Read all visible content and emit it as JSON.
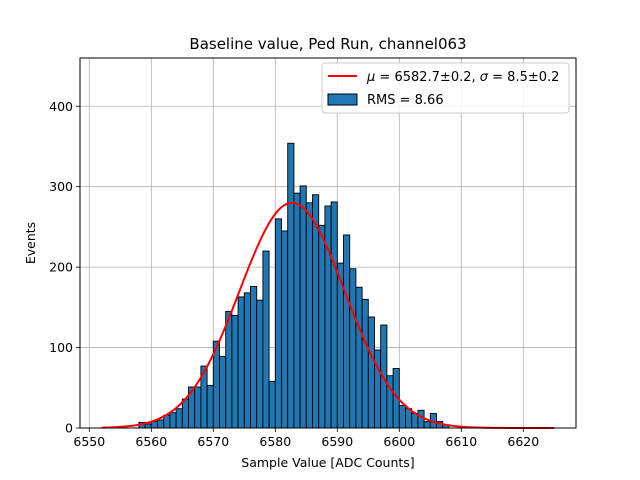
{
  "chart_data": {
    "type": "bar",
    "subtype": "histogram",
    "title": "Baseline value, Ped Run, channel063",
    "xlabel": "Sample Value [ADC Counts]",
    "ylabel": "Events",
    "xlim": [
      6548.5,
      6628.5
    ],
    "ylim": [
      0,
      460
    ],
    "xticks": [
      6550,
      6560,
      6570,
      6580,
      6590,
      6600,
      6610,
      6620
    ],
    "yticks": [
      0,
      100,
      200,
      300,
      400
    ],
    "grid": true,
    "legend_position": "top-right",
    "bin_width": 1,
    "bin_starts": [
      6558,
      6559,
      6560,
      6561,
      6562,
      6563,
      6564,
      6565,
      6566,
      6567,
      6568,
      6569,
      6570,
      6571,
      6572,
      6573,
      6574,
      6575,
      6576,
      6577,
      6578,
      6579,
      6580,
      6581,
      6582,
      6583,
      6584,
      6585,
      6586,
      6587,
      6588,
      6589,
      6590,
      6591,
      6592,
      6593,
      6594,
      6595,
      6596,
      6597,
      6598,
      6599,
      6600,
      6601,
      6602,
      6603,
      6604,
      6605,
      6606,
      6607
    ],
    "series": [
      {
        "name": "RMS = 8.66",
        "kind": "histogram",
        "color": "#1f77b4",
        "edgecolor": "#000000",
        "values": [
          7,
          5,
          8,
          10,
          16,
          19,
          24,
          36,
          51,
          51,
          77,
          53,
          108,
          89,
          145,
          140,
          163,
          168,
          176,
          159,
          220,
          58,
          260,
          245,
          354,
          292,
          301,
          280,
          290,
          252,
          276,
          281,
          205,
          240,
          198,
          175,
          160,
          138,
          97,
          128,
          65,
          74,
          28,
          24,
          18,
          22,
          8,
          18,
          8,
          4
        ]
      },
      {
        "name": "$\\mu = 6582.7\\pm0.2$, $\\sigma = 8.5\\pm0.2$",
        "kind": "gaussian-fit",
        "color": "#ff0000",
        "amplitude": 280,
        "mu": 6582.7,
        "sigma": 8.5,
        "range": [
          6552,
          6625
        ]
      }
    ],
    "legend": {
      "fit_mu_label": "μ",
      "fit_mu_text": " = 6582.7±0.2, ",
      "fit_sigma_label": "σ",
      "fit_sigma_text": " = 8.5±0.2",
      "hist_text": "RMS = 8.66"
    }
  }
}
